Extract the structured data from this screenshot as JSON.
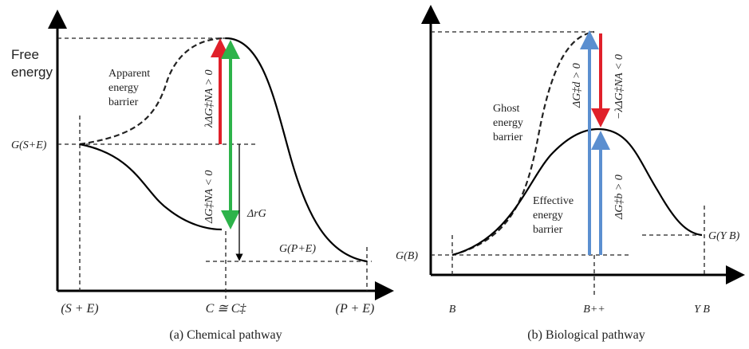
{
  "panel_a": {
    "y_axis_label": [
      "Free",
      "energy"
    ],
    "apparent_barrier_label": [
      "Apparent",
      "energy",
      "barrier"
    ],
    "g_start_label": "G(S+E)",
    "g_end_label": "G(P+E)",
    "upper_arrow_label": "λΔG‡NA > 0",
    "lower_arrow_label": "ΔG‡NA < 0",
    "reaction_energy_label": "ΔrG",
    "x_labels": [
      "(S + E)",
      "C ≅ C‡",
      "(P + E)"
    ],
    "caption": "(a) Chemical pathway"
  },
  "panel_b": {
    "ghost_barrier_label": [
      "Ghost",
      "energy",
      "barrier"
    ],
    "effective_barrier_label": [
      "Effective",
      "energy",
      "barrier"
    ],
    "g_start_label": "G(B)",
    "g_end_label": "G(Y B)",
    "ghost_arrow_label": "ΔG‡d > 0",
    "effective_arrow_label": "ΔG‡b > 0",
    "correction_arrow_label": "−λΔG‡NA < 0",
    "x_labels": [
      "B",
      "B++",
      "Y B"
    ],
    "caption": "(b) Biological pathway"
  }
}
